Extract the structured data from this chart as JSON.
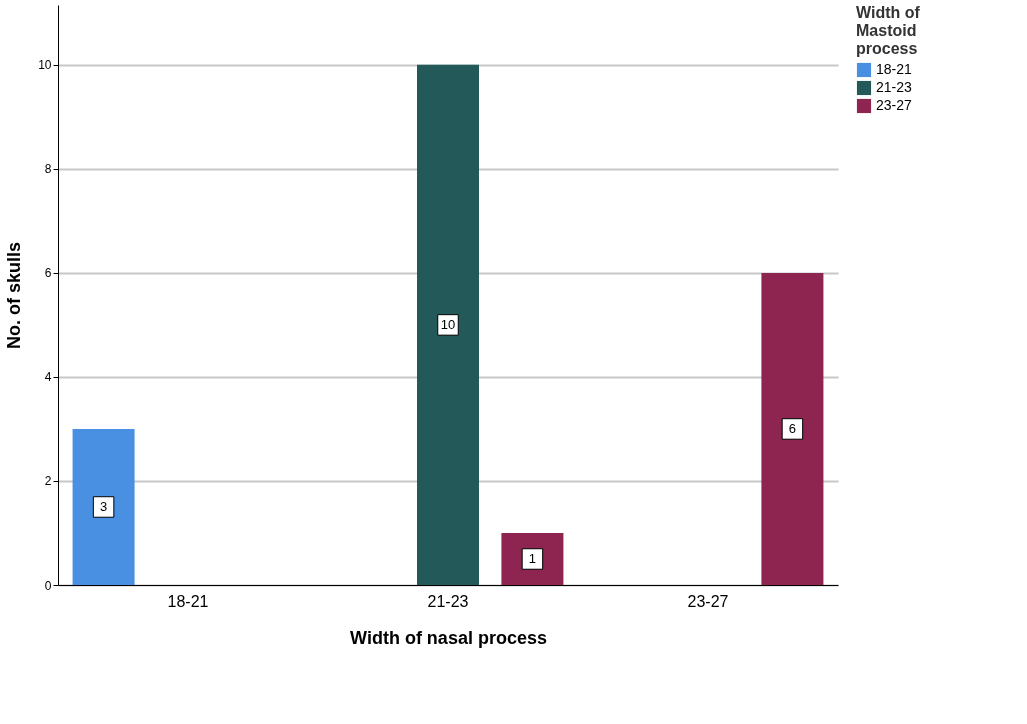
{
  "chart_data": {
    "type": "bar",
    "xlabel": "Width of nasal process",
    "ylabel": "No. of skulls",
    "legend_title": "Width of Mastoid process",
    "categories": [
      "18-21",
      "21-23",
      "23-27"
    ],
    "series": [
      {
        "name": "18-21",
        "color": "#4a90e2",
        "values": [
          3,
          null,
          null
        ]
      },
      {
        "name": "21-23",
        "color": "#24595a",
        "values": [
          null,
          10,
          null
        ]
      },
      {
        "name": "23-27",
        "color": "#8e2550",
        "values": [
          null,
          1,
          6
        ]
      }
    ],
    "ylim": [
      0,
      11.15
    ],
    "yticks": [
      0,
      2,
      4,
      6,
      8,
      10
    ],
    "grid": "y",
    "legend": "top right",
    "data_labels": true
  }
}
